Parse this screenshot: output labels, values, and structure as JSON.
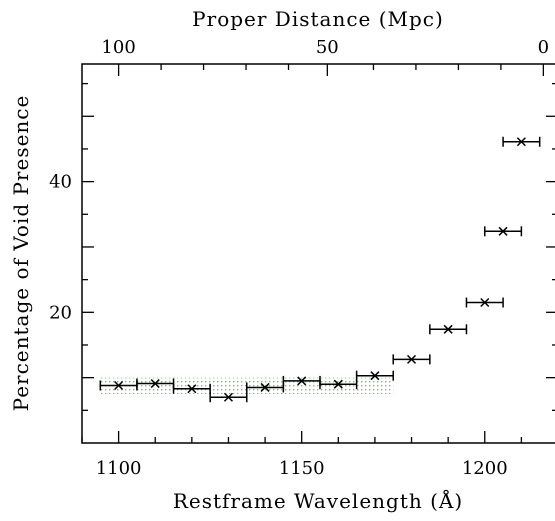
{
  "chart_data": {
    "type": "scatter",
    "xlabel": "Restframe Wavelength (Å)",
    "ylabel": "Percentage of Void Presence",
    "top_axis_label": "Proper Distance (Mpc)",
    "xlim": [
      1090,
      1220
    ],
    "ylim": [
      0,
      58
    ],
    "x_ticks": [
      1100,
      1150,
      1200
    ],
    "y_ticks": [
      20,
      40
    ],
    "top_ticks": [
      {
        "label": "100",
        "wavelength": 1100
      },
      {
        "label": "50",
        "wavelength": 1157
      },
      {
        "label": "0",
        "wavelength": 1216
      }
    ],
    "points": [
      {
        "x": 1100,
        "y": 8.8,
        "xerr": 5
      },
      {
        "x": 1110,
        "y": 9.1,
        "xerr": 5
      },
      {
        "x": 1120,
        "y": 8.3,
        "xerr": 5
      },
      {
        "x": 1130,
        "y": 7.0,
        "xerr": 5
      },
      {
        "x": 1140,
        "y": 8.5,
        "xerr": 5
      },
      {
        "x": 1150,
        "y": 9.5,
        "xerr": 5
      },
      {
        "x": 1160,
        "y": 9.0,
        "xerr": 5
      },
      {
        "x": 1170,
        "y": 10.3,
        "xerr": 5
      },
      {
        "x": 1180,
        "y": 12.8,
        "xerr": 5
      },
      {
        "x": 1190,
        "y": 17.4,
        "xerr": 5
      },
      {
        "x": 1200,
        "y": 21.5,
        "xerr": 5
      },
      {
        "x": 1205,
        "y": 32.4,
        "xerr": 5
      },
      {
        "x": 1210,
        "y": 46.1,
        "xerr": 5
      }
    ],
    "shaded_band": {
      "x": [
        1095,
        1175
      ],
      "y": [
        7.5,
        10.0
      ],
      "color": "#7ed07e"
    },
    "marker_color": "#000000"
  }
}
